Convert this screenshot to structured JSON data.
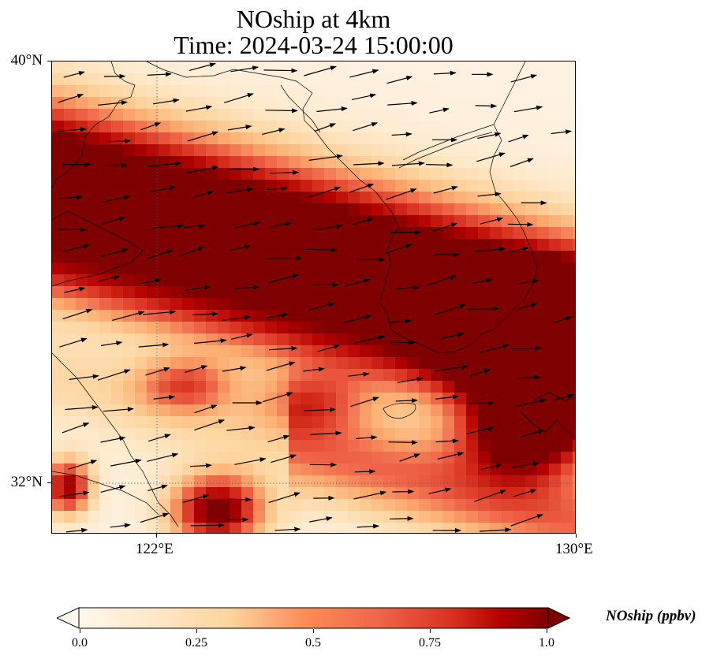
{
  "title_line1": "NOship at 4km",
  "title_line2": "Time: 2024-03-24 15:00:00",
  "axes": {
    "lat_labels": [
      "40°N",
      "32°N"
    ],
    "lon_labels": [
      "122°E",
      "130°E"
    ],
    "lon_range": [
      120,
      130
    ],
    "lat_range": [
      31,
      40
    ]
  },
  "colorbar": {
    "label": "NOship (ppbv)",
    "ticks": [
      "0.0",
      "0.25",
      "0.5",
      "0.75",
      "1.0"
    ],
    "vmin": 0.0,
    "vmax": 1.0,
    "extend": "both",
    "cmap": "OrRd",
    "colors": [
      "#fff5eb",
      "#fee3c8",
      "#fdc28c",
      "#fc8d59",
      "#e34a33",
      "#b30000",
      "#7f0000"
    ]
  },
  "map": {
    "gridlines": "dotted",
    "coastline_color": "#000000",
    "wind_vectors": "black arrows, mostly westerly (pointing east)"
  }
}
